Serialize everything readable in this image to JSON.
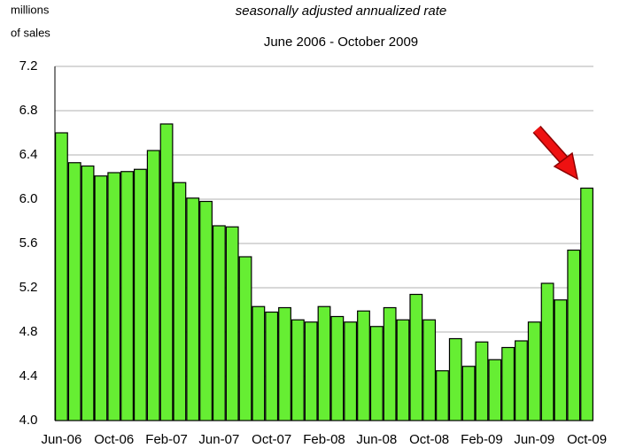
{
  "chart_data": {
    "type": "bar",
    "subtitle": "seasonally adjusted annualized rate",
    "date_range": "June 2006 - October 2009",
    "y_label": [
      "millions",
      "of sales"
    ],
    "categories": [
      "Jun-06",
      null,
      null,
      null,
      "Oct-06",
      null,
      null,
      null,
      "Feb-07",
      null,
      null,
      null,
      "Jun-07",
      null,
      null,
      null,
      "Oct-07",
      null,
      null,
      null,
      "Feb-08",
      null,
      null,
      null,
      "Jun-08",
      null,
      null,
      null,
      "Oct-08",
      null,
      null,
      null,
      "Feb-09",
      null,
      null,
      null,
      "Jun-09",
      null,
      null,
      null,
      "Oct-09"
    ],
    "values": [
      6.6,
      6.33,
      6.3,
      6.21,
      6.24,
      6.25,
      6.27,
      6.44,
      6.68,
      6.15,
      6.01,
      5.98,
      5.76,
      5.75,
      5.48,
      5.03,
      4.98,
      5.02,
      4.91,
      4.89,
      5.03,
      4.94,
      4.89,
      4.99,
      4.85,
      5.02,
      4.91,
      5.14,
      4.91,
      4.45,
      4.74,
      4.49,
      4.71,
      4.55,
      4.66,
      4.72,
      4.89,
      5.24,
      5.09,
      5.54,
      6.1
    ],
    "color": "#66ee33",
    "ylim": [
      4.0,
      7.2
    ],
    "yticks": [
      {
        "value": 4,
        "label": "4.0"
      },
      4.4,
      4.8,
      5.2,
      5.6,
      {
        "value": 6,
        "label": "6.0"
      },
      6.4,
      6.8,
      7.2
    ],
    "grid": true
  }
}
